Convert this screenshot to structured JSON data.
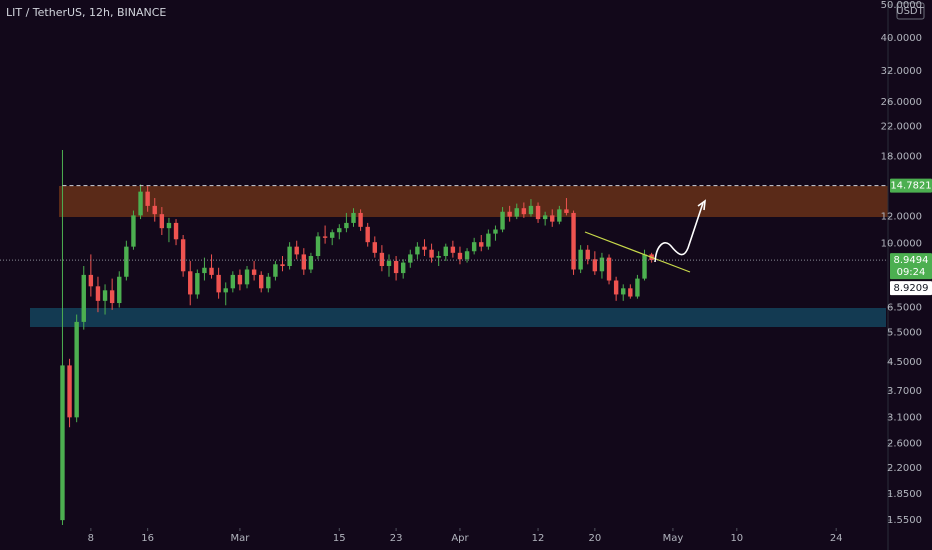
{
  "chart_data": {
    "type": "candlestick",
    "title": "LIT / TetherUS, 12h, BINANCE",
    "currency": "USDT",
    "log_scale": true,
    "up_color": "#4caf50",
    "down_color": "#ef5350",
    "x": [
      4,
      5,
      6,
      7,
      8,
      9,
      10,
      11,
      12,
      13,
      14,
      15,
      16,
      17,
      18,
      19,
      20,
      21,
      22,
      23,
      24,
      25,
      26,
      27,
      28,
      29,
      30,
      31,
      32,
      33,
      34,
      35,
      36,
      37,
      38,
      39,
      40,
      41,
      42,
      43,
      44,
      45,
      46,
      47,
      48,
      49,
      50,
      51,
      52,
      53,
      54,
      55,
      56,
      57,
      58,
      59,
      60,
      61,
      62,
      63,
      64,
      65,
      66,
      67,
      68,
      69,
      70,
      71,
      72,
      73,
      74,
      75,
      76,
      77,
      78,
      79,
      80,
      81,
      82,
      83,
      84,
      85,
      86,
      87
    ],
    "open": [
      1.55,
      4.4,
      3.1,
      5.9,
      8.1,
      7.5,
      6.8,
      7.3,
      6.7,
      8.0,
      9.8,
      12.1,
      14.2,
      12.9,
      12.2,
      11.1,
      11.5,
      10.3,
      8.3,
      7.1,
      8.2,
      8.5,
      8.1,
      7.2,
      7.4,
      8.1,
      7.6,
      8.4,
      8.1,
      7.4,
      8.0,
      8.7,
      8.6,
      9.8,
      9.3,
      8.4,
      9.2,
      10.5,
      10.4,
      10.8,
      11.1,
      11.5,
      12.3,
      11.2,
      10.1,
      9.4,
      8.6,
      8.9,
      8.2,
      8.8,
      9.3,
      9.8,
      9.6,
      9.1,
      9.2,
      9.8,
      9.4,
      9.0,
      9.5,
      10.1,
      9.8,
      10.7,
      11.0,
      12.4,
      12.0,
      12.7,
      12.2,
      12.9,
      11.8,
      12.1,
      11.6,
      12.6,
      12.3,
      8.4,
      9.6,
      9.0,
      8.3,
      9.1,
      7.8,
      7.1,
      7.4,
      7.0,
      7.9,
      9.3
    ],
    "high": [
      18.8,
      4.6,
      6.2,
      8.6,
      9.3,
      8.0,
      7.6,
      7.9,
      8.3,
      10.2,
      12.5,
      14.9,
      14.8,
      13.6,
      12.8,
      11.9,
      11.8,
      10.6,
      8.9,
      8.4,
      9.1,
      9.3,
      8.5,
      7.7,
      8.3,
      8.4,
      8.6,
      8.9,
      8.3,
      8.2,
      8.9,
      9.2,
      10.1,
      10.2,
      9.7,
      9.4,
      10.8,
      11.3,
      11.0,
      11.4,
      12.3,
      12.7,
      12.6,
      11.5,
      10.5,
      9.9,
      9.3,
      9.2,
      9.0,
      9.6,
      10.1,
      10.3,
      10.0,
      9.5,
      10.0,
      10.2,
      9.8,
      9.7,
      10.4,
      10.6,
      11.0,
      11.3,
      12.8,
      12.9,
      13.1,
      13.2,
      13.5,
      13.2,
      12.4,
      12.6,
      12.9,
      13.6,
      12.5,
      9.9,
      9.9,
      9.5,
      9.4,
      9.3,
      8.0,
      7.6,
      7.6,
      8.1,
      9.6,
      9.4
    ],
    "low": [
      1.5,
      2.9,
      3.0,
      5.6,
      7.0,
      6.3,
      6.2,
      6.4,
      6.5,
      7.8,
      9.6,
      11.8,
      12.4,
      11.6,
      10.6,
      10.1,
      9.9,
      8.0,
      6.6,
      6.9,
      7.8,
      7.9,
      6.9,
      6.6,
      7.2,
      7.3,
      7.4,
      7.8,
      7.2,
      7.2,
      7.8,
      8.3,
      8.4,
      9.0,
      8.1,
      8.2,
      9.0,
      10.0,
      9.9,
      10.3,
      10.8,
      11.2,
      10.9,
      9.8,
      9.1,
      8.3,
      8.0,
      7.8,
      7.9,
      8.5,
      9.0,
      9.2,
      8.8,
      8.6,
      8.9,
      9.1,
      8.7,
      8.8,
      9.3,
      9.5,
      9.6,
      10.2,
      10.8,
      11.6,
      11.8,
      11.9,
      12.0,
      11.5,
      11.3,
      11.2,
      11.4,
      12.1,
      8.1,
      8.2,
      8.7,
      8.1,
      7.9,
      7.6,
      6.8,
      6.8,
      6.9,
      6.9,
      7.8,
      8.8
    ],
    "close": [
      4.4,
      3.1,
      5.9,
      8.1,
      7.5,
      6.8,
      7.3,
      6.7,
      8.0,
      9.8,
      12.1,
      14.2,
      12.9,
      12.2,
      11.1,
      11.5,
      10.3,
      8.3,
      7.1,
      8.2,
      8.5,
      8.1,
      7.2,
      7.4,
      8.1,
      7.6,
      8.4,
      8.1,
      7.4,
      8.0,
      8.7,
      8.6,
      9.8,
      9.3,
      8.4,
      9.2,
      10.5,
      10.4,
      10.8,
      11.1,
      11.5,
      12.3,
      11.2,
      10.1,
      9.4,
      8.6,
      8.9,
      8.2,
      8.8,
      9.3,
      9.8,
      9.6,
      9.1,
      9.2,
      9.8,
      9.4,
      9.0,
      9.5,
      10.1,
      9.8,
      10.7,
      11.0,
      12.4,
      12.0,
      12.7,
      12.2,
      12.9,
      11.8,
      12.1,
      11.6,
      12.6,
      12.3,
      8.4,
      9.6,
      9.0,
      8.3,
      9.1,
      7.8,
      7.1,
      7.4,
      7.0,
      7.9,
      9.3,
      8.95
    ],
    "xlim": [
      -4.8,
      120.3
    ],
    "xticks": [
      {
        "value": 8,
        "label": "8"
      },
      {
        "value": 16,
        "label": "16"
      },
      {
        "value": 29,
        "label": "Mar"
      },
      {
        "value": 43,
        "label": "15"
      },
      {
        "value": 51,
        "label": "23"
      },
      {
        "value": 60,
        "label": "Apr"
      },
      {
        "value": 71,
        "label": "12"
      },
      {
        "value": 79,
        "label": "20"
      },
      {
        "value": 90,
        "label": "May"
      },
      {
        "value": 99,
        "label": "10"
      },
      {
        "value": 113,
        "label": "24"
      }
    ],
    "ylim": [
      1.47,
      51.7
    ],
    "yticks": [
      {
        "value": 50,
        "label": "50.0000"
      },
      {
        "value": 40,
        "label": "40.0000"
      },
      {
        "value": 32,
        "label": "32.0000"
      },
      {
        "value": 26,
        "label": "26.0000"
      },
      {
        "value": 22,
        "label": "22.0000"
      },
      {
        "value": 18,
        "label": "18.0000"
      },
      {
        "value": 12,
        "label": "12.0000"
      },
      {
        "value": 10,
        "label": "10.0000"
      },
      {
        "value": 6.5,
        "label": "6.5000"
      },
      {
        "value": 5.5,
        "label": "5.5000"
      },
      {
        "value": 4.5,
        "label": "4.5000"
      },
      {
        "value": 3.7,
        "label": "3.7000"
      },
      {
        "value": 3.1,
        "label": "3.1000"
      },
      {
        "value": 2.6,
        "label": "2.6000"
      },
      {
        "value": 2.2,
        "label": "2.2000"
      },
      {
        "value": 1.85,
        "label": "1.8500"
      },
      {
        "value": 1.55,
        "label": "1.5500"
      }
    ],
    "markers": [
      {
        "price": 14.7821,
        "color": "#4caf50",
        "line": "dashed"
      },
      {
        "price": 8.9494,
        "countdown": "09:24",
        "color": "#4caf50",
        "line": "dotted"
      },
      {
        "price": 8.9209,
        "color": "#ffffff"
      }
    ]
  }
}
